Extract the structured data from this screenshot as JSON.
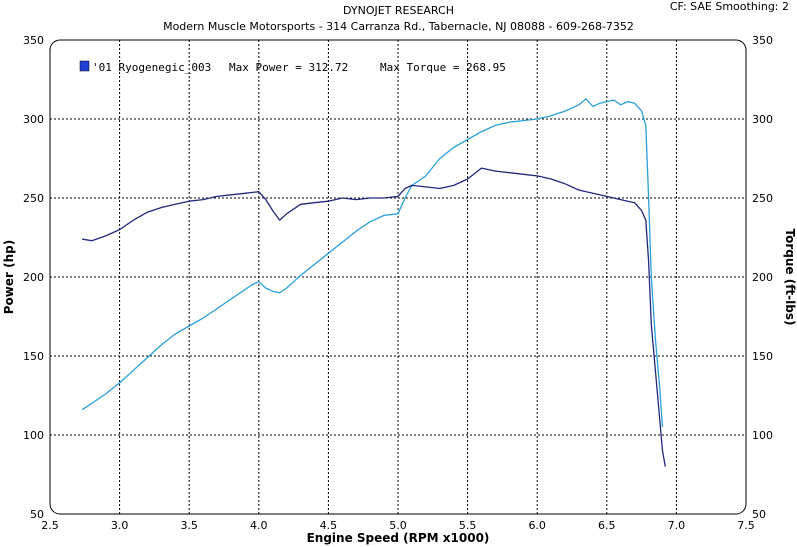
{
  "header": {
    "title": "DYNOJET RESEARCH",
    "shop": "Modern Muscle Motorsports - 314 Carranza Rd., Tabernacle, NJ 08088 - 609-268-7352",
    "cf_info": "CF: SAE  Smoothing: 2"
  },
  "legend": {
    "run_name": "'01 Ryogenegic_003",
    "max_power_text": "Max Power = 312.72",
    "max_torque_text": "Max Torque = 268.95",
    "swatch_color": "#1f3fd6"
  },
  "chart_data": {
    "type": "line",
    "xlabel": "Engine Speed (RPM x1000)",
    "ylabel": "Power (hp)",
    "y2label": "Torque (ft-lbs)",
    "xlim": [
      2.5,
      7.5
    ],
    "ylim": [
      50,
      350
    ],
    "y2lim": [
      50,
      350
    ],
    "x_ticks": [
      "2.5",
      "3.0",
      "3.5",
      "4.0",
      "4.5",
      "5.0",
      "5.5",
      "6.0",
      "6.5",
      "7.0",
      "7.5"
    ],
    "y_ticks": [
      "50",
      "100",
      "150",
      "200",
      "250",
      "300",
      "350"
    ],
    "y2_ticks": [
      "50",
      "100",
      "150",
      "200",
      "250",
      "300",
      "350"
    ],
    "grid": true,
    "grid_style": "dotted",
    "series": [
      {
        "name": "Power",
        "color": "#2a9fd9",
        "x": [
          2.73,
          2.8,
          2.9,
          3.0,
          3.1,
          3.2,
          3.3,
          3.4,
          3.5,
          3.6,
          3.7,
          3.8,
          3.9,
          3.95,
          4.0,
          4.05,
          4.1,
          4.15,
          4.2,
          4.25,
          4.3,
          4.4,
          4.5,
          4.6,
          4.7,
          4.8,
          4.9,
          5.0,
          5.05,
          5.1,
          5.2,
          5.3,
          5.4,
          5.5,
          5.6,
          5.65,
          5.7,
          5.8,
          5.9,
          6.0,
          6.1,
          6.2,
          6.3,
          6.35,
          6.4,
          6.45,
          6.5,
          6.55,
          6.6,
          6.65,
          6.7,
          6.75,
          6.78,
          6.8,
          6.82,
          6.85,
          6.88,
          6.9
        ],
        "values": [
          116,
          120,
          126,
          133,
          141,
          149,
          157,
          164,
          169,
          174,
          180,
          186,
          192,
          195,
          197,
          193,
          191,
          190,
          193,
          197,
          201,
          208,
          215,
          222,
          229,
          235,
          239,
          240,
          250,
          258,
          264,
          275,
          282,
          287,
          292,
          294,
          296,
          298,
          299,
          300,
          302,
          305,
          309,
          312.72,
          308,
          310,
          311,
          312,
          309,
          311,
          310,
          305,
          296,
          250,
          200,
          160,
          130,
          105
        ]
      },
      {
        "name": "Torque",
        "color": "#22287a",
        "x": [
          2.73,
          2.8,
          2.9,
          3.0,
          3.1,
          3.2,
          3.3,
          3.4,
          3.5,
          3.6,
          3.7,
          3.8,
          3.9,
          4.0,
          4.05,
          4.1,
          4.15,
          4.2,
          4.25,
          4.3,
          4.4,
          4.5,
          4.6,
          4.7,
          4.8,
          4.9,
          5.0,
          5.05,
          5.1,
          5.2,
          5.3,
          5.4,
          5.5,
          5.6,
          5.65,
          5.7,
          5.8,
          5.9,
          6.0,
          6.1,
          6.2,
          6.3,
          6.4,
          6.5,
          6.6,
          6.65,
          6.7,
          6.75,
          6.78,
          6.8,
          6.82,
          6.85,
          6.88,
          6.9,
          6.92
        ],
        "values": [
          224,
          223,
          226,
          230,
          236,
          241,
          244,
          246,
          248,
          249,
          251,
          252,
          253,
          254,
          249,
          242,
          236,
          240,
          243,
          246,
          247,
          248,
          250,
          249,
          250,
          250,
          251,
          256,
          258,
          257,
          256,
          258,
          262,
          268.95,
          268,
          267,
          266,
          265,
          264,
          262,
          259,
          255,
          253,
          251,
          249,
          248,
          247,
          242,
          236,
          210,
          170,
          140,
          110,
          90,
          80
        ]
      }
    ]
  }
}
